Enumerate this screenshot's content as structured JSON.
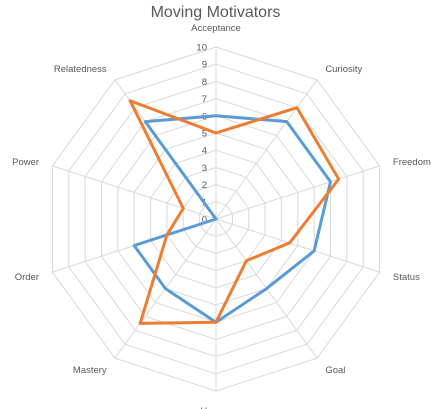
{
  "chart_data": {
    "type": "radar",
    "title": "Moving Motivators",
    "categories": [
      "Acceptance",
      "Curiosity",
      "Freedom",
      "Status",
      "Goal",
      "Honnor",
      "Mastery",
      "Order",
      "Power",
      "Relatedness"
    ],
    "rlim": [
      0,
      10
    ],
    "ticks": [
      "0",
      "1",
      "2",
      "3",
      "4",
      "5",
      "6",
      "7",
      "8",
      "9",
      "10"
    ],
    "series": [
      {
        "values": [
          6,
          7,
          7,
          6,
          5,
          6,
          5,
          5,
          0,
          7
        ],
        "color": "#5B9BD5"
      },
      {
        "values": [
          5,
          8,
          7.5,
          4.5,
          3,
          6,
          7.5,
          3,
          2,
          8.5
        ],
        "color": "#ED7D31"
      }
    ],
    "grid": true,
    "legend": "none"
  }
}
